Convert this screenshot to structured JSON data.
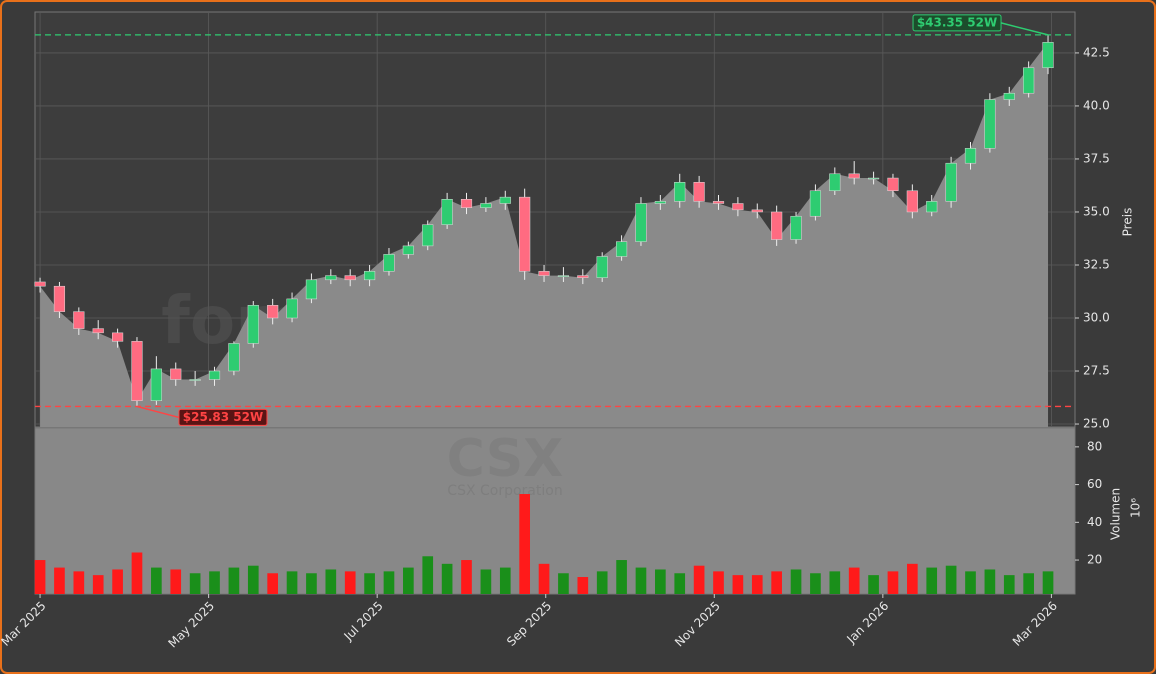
{
  "chart_data": {
    "type": "candlestick",
    "watermark": "forexsignale.trade",
    "symbol_label": "CSX",
    "company_label": "CSX Corporation",
    "y_label": "Preis",
    "y2_label": "Volumen",
    "y2_multiplier": "10⁶",
    "x": [
      0,
      0.23,
      0.46,
      0.69,
      0.92,
      1.15,
      1.38,
      1.61,
      1.84,
      2.07,
      2.3,
      2.53,
      2.76,
      2.99,
      3.22,
      3.45,
      3.68,
      3.91,
      4.14,
      4.37,
      4.6,
      4.83,
      5.06,
      5.29,
      5.52,
      5.75,
      5.98,
      6.21,
      6.44,
      6.67,
      6.9,
      7.13,
      7.36,
      7.59,
      7.82,
      8.05,
      8.28,
      8.51,
      8.74,
      8.97,
      9.2,
      9.43,
      9.66,
      9.89,
      10.12,
      10.35,
      10.58,
      10.81,
      11.04,
      11.27,
      11.5,
      11.73,
      11.96
    ],
    "open": [
      31.7,
      31.5,
      30.3,
      29.5,
      29.3,
      28.9,
      26.1,
      27.6,
      27.1,
      27.1,
      27.5,
      28.8,
      30.6,
      30.0,
      30.9,
      31.8,
      32.0,
      31.8,
      32.2,
      33.0,
      33.4,
      34.4,
      35.6,
      35.2,
      35.4,
      35.7,
      32.2,
      32.0,
      32.0,
      31.9,
      32.9,
      33.6,
      35.4,
      35.5,
      36.4,
      35.5,
      35.4,
      35.1,
      35.0,
      33.7,
      34.8,
      36.0,
      36.8,
      36.6,
      36.6,
      36.0,
      35.0,
      35.5,
      37.3,
      38.0,
      40.3,
      40.6,
      41.8
    ],
    "high": [
      31.9,
      31.7,
      30.5,
      29.9,
      29.5,
      29.1,
      28.2,
      27.9,
      27.5,
      27.7,
      28.9,
      30.8,
      30.9,
      31.2,
      32.1,
      32.3,
      32.3,
      32.5,
      33.3,
      33.6,
      34.6,
      35.9,
      35.9,
      35.7,
      36.0,
      36.1,
      32.5,
      32.4,
      32.3,
      33.1,
      33.9,
      35.7,
      35.8,
      36.8,
      36.7,
      35.8,
      35.7,
      35.4,
      35.3,
      35.0,
      36.3,
      37.1,
      37.4,
      36.9,
      36.8,
      36.3,
      35.8,
      37.6,
      38.3,
      40.6,
      40.9,
      42.1,
      43.35
    ],
    "low": [
      31.2,
      30.0,
      29.2,
      29.0,
      28.6,
      25.83,
      25.9,
      26.8,
      26.8,
      26.8,
      27.3,
      28.6,
      29.7,
      29.8,
      30.7,
      31.6,
      31.5,
      31.5,
      32.0,
      32.8,
      33.2,
      34.2,
      34.9,
      35.0,
      35.1,
      31.8,
      31.7,
      31.7,
      31.6,
      31.7,
      32.7,
      33.4,
      35.1,
      35.2,
      35.2,
      35.1,
      34.8,
      34.7,
      33.4,
      33.5,
      34.6,
      35.8,
      36.3,
      36.3,
      35.7,
      34.7,
      34.8,
      35.2,
      37.0,
      37.8,
      40.0,
      40.4,
      41.5
    ],
    "close": [
      31.5,
      30.3,
      29.5,
      29.3,
      28.9,
      26.1,
      27.6,
      27.1,
      27.1,
      27.5,
      28.8,
      30.6,
      30.0,
      30.9,
      31.8,
      32.0,
      31.8,
      32.2,
      33.0,
      33.4,
      34.4,
      35.6,
      35.2,
      35.4,
      35.7,
      32.2,
      32.0,
      32.0,
      31.9,
      32.9,
      33.6,
      35.4,
      35.5,
      36.4,
      35.5,
      35.4,
      35.1,
      35.0,
      33.7,
      34.8,
      36.0,
      36.8,
      36.6,
      36.6,
      36.0,
      35.0,
      35.5,
      37.3,
      38.0,
      40.3,
      40.6,
      41.8,
      43.0
    ],
    "volume": [
      20,
      16,
      14,
      12,
      15,
      24,
      16,
      15,
      13,
      14,
      16,
      17,
      13,
      14,
      13,
      15,
      14,
      13,
      14,
      16,
      22,
      18,
      20,
      15,
      16,
      55,
      18,
      13,
      11,
      14,
      20,
      16,
      15,
      13,
      17,
      14,
      12,
      12,
      14,
      15,
      13,
      14,
      16,
      12,
      14,
      18,
      16,
      17,
      14,
      15,
      12,
      13,
      14
    ],
    "up_color": "#2ecc71",
    "down_color": "#ff6b81",
    "volume_up_color": "#1a8f1a",
    "volume_down_color": "#ff1a1a",
    "xlim": [
      -0.06,
      12.28
    ],
    "xticks": [
      {
        "value": 0,
        "label": "Mar 2025"
      },
      {
        "value": 2,
        "label": "May 2025"
      },
      {
        "value": 4,
        "label": "Jul 2025"
      },
      {
        "value": 6,
        "label": "Sep 2025"
      },
      {
        "value": 8,
        "label": "Nov 2025"
      },
      {
        "value": 10,
        "label": "Jan 2026"
      },
      {
        "value": 12,
        "label": "Mar 2026"
      }
    ],
    "ylim": [
      24.86,
      44.43
    ],
    "yticks": [
      {
        "value": 25,
        "label": "25.0"
      },
      27.5,
      {
        "value": 30,
        "label": "30.0"
      },
      32.5,
      {
        "value": 35,
        "label": "35.0"
      },
      37.5,
      {
        "value": 40,
        "label": "40.0"
      },
      42.5
    ],
    "y2lim": [
      2,
      90
    ],
    "y2ticks": [
      20,
      40,
      60,
      80
    ],
    "grid": true,
    "annotations": [
      {
        "text": "$43.35 52W",
        "value": 43.35,
        "x": 11.96,
        "color": "#2ecc71"
      },
      {
        "text": "$25.83 52W",
        "value": 25.83,
        "x": 1.15,
        "color": "#ff4444"
      }
    ]
  }
}
